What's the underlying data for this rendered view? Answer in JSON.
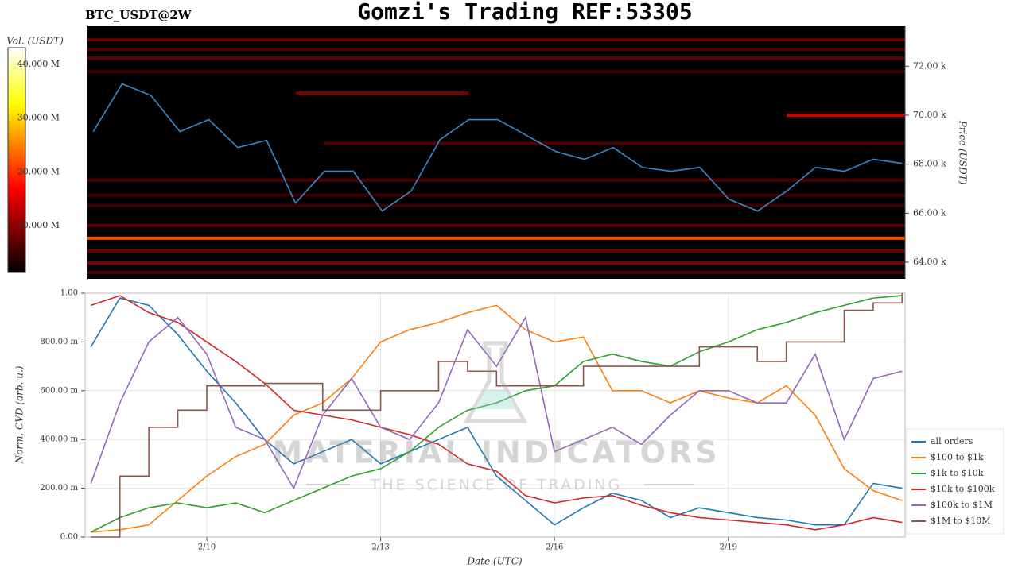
{
  "watermark": {
    "title": "MATERIAL INDICATORS",
    "subtitle": "THE SCIENCE OF TRADING"
  },
  "chart_data": [
    {
      "type": "heatmap",
      "title": "Gomzi's Trading REF:53305",
      "subtitle": "BTC_USDT@2W",
      "y_label": "Price (USDT)",
      "colorbar_label": "Vol. (USDT)",
      "xlim": [
        7.9,
        22.05
      ],
      "ylim": [
        63320,
        73630
      ],
      "yticks": [
        {
          "value": 64000,
          "label": "64.00 k"
        },
        {
          "value": 66000,
          "label": "66.00 k"
        },
        {
          "value": 68000,
          "label": "68.00 k"
        },
        {
          "value": 70000,
          "label": "70.00 k"
        },
        {
          "value": 72000,
          "label": "72.00 k"
        }
      ],
      "clim": [
        1300000,
        43100000
      ],
      "cticks": [
        {
          "value": 10000000,
          "label": "10.000 M"
        },
        {
          "value": 20000000,
          "label": "20.000 M"
        },
        {
          "value": 30000000,
          "label": "30.000 M"
        },
        {
          "value": 40000000,
          "label": "40.000 M"
        }
      ],
      "colormap": "hot",
      "bands": [
        {
          "price": 73070,
          "volume": 8000000,
          "from": 7.9,
          "to": 22.05
        },
        {
          "price": 72680,
          "volume": 6000000,
          "from": 7.9,
          "to": 22.05
        },
        {
          "price": 72330,
          "volume": 7000000,
          "from": 7.9,
          "to": 22.05
        },
        {
          "price": 71770,
          "volume": 5000000,
          "from": 7.9,
          "to": 22.05
        },
        {
          "price": 70900,
          "volume": 9000000,
          "from": 11.5,
          "to": 14.5
        },
        {
          "price": 70000,
          "volume": 14000000,
          "from": 20.0,
          "to": 22.05
        },
        {
          "price": 68850,
          "volume": 6000000,
          "from": 12.0,
          "to": 22.05
        },
        {
          "price": 67350,
          "volume": 6000000,
          "from": 7.9,
          "to": 22.05
        },
        {
          "price": 66735,
          "volume": 5000000,
          "from": 7.9,
          "to": 22.05
        },
        {
          "price": 66310,
          "volume": 5000000,
          "from": 7.9,
          "to": 22.05
        },
        {
          "price": 65500,
          "volume": 7000000,
          "from": 7.9,
          "to": 22.05
        },
        {
          "price": 64980,
          "volume": 22000000,
          "from": 7.9,
          "to": 22.05
        },
        {
          "price": 64460,
          "volume": 8000000,
          "from": 7.9,
          "to": 22.05
        },
        {
          "price": 63970,
          "volume": 9000000,
          "from": 7.9,
          "to": 22.05
        },
        {
          "price": 63580,
          "volume": 6000000,
          "from": 7.9,
          "to": 22.05
        }
      ],
      "x": [
        8,
        8.5,
        9,
        9.5,
        10,
        10.5,
        11,
        11.5,
        12,
        12.5,
        13,
        13.5,
        14,
        14.5,
        15,
        15.5,
        16,
        16.5,
        17,
        17.5,
        18,
        18.5,
        19,
        19.5,
        20,
        20.5,
        21,
        21.5,
        22
      ],
      "series": [
        {
          "color": "#3a87c8",
          "values": [
            69330,
            71280,
            70800,
            69330,
            69820,
            68680,
            68970,
            66410,
            67710,
            67710,
            66090,
            66900,
            69000,
            69820,
            69820,
            69170,
            68520,
            68200,
            68680,
            67870,
            67710,
            67870,
            66570,
            66090,
            66900,
            67870,
            67710,
            68200,
            68030
          ]
        }
      ]
    },
    {
      "type": "line",
      "x_label": "Date (UTC)",
      "y_label": "Norm. CVD (arb. u.)",
      "xlim": [
        7.9,
        22.05
      ],
      "ylim": [
        0,
        1
      ],
      "xticks": [
        {
          "value": 10,
          "label": "2/10"
        },
        {
          "value": 13,
          "label": "2/13"
        },
        {
          "value": 16,
          "label": "2/16"
        },
        {
          "value": 19,
          "label": "2/19"
        }
      ],
      "yticks": [
        {
          "value": 0,
          "label": "0.00"
        },
        {
          "value": 0.2,
          "label": "200.00 m"
        },
        {
          "value": 0.4,
          "label": "400.00 m"
        },
        {
          "value": 0.6,
          "label": "600.00 m"
        },
        {
          "value": 0.8,
          "label": "800.00 m"
        },
        {
          "value": 1,
          "label": "1.00"
        }
      ],
      "grid": true,
      "legend": "outside-right-bottom",
      "x": [
        8,
        8.5,
        9,
        9.5,
        10,
        10.5,
        11,
        11.5,
        12,
        12.5,
        13,
        13.5,
        14,
        14.5,
        15,
        15.5,
        16,
        16.5,
        17,
        17.5,
        18,
        18.5,
        19,
        19.5,
        20,
        20.5,
        21,
        21.5,
        22
      ],
      "series": [
        {
          "name": "all orders",
          "color": "#1f77b4",
          "values": [
            0.78,
            0.98,
            0.95,
            0.83,
            0.68,
            0.55,
            0.4,
            0.3,
            0.35,
            0.4,
            0.3,
            0.35,
            0.4,
            0.45,
            0.25,
            0.15,
            0.05,
            0.12,
            0.18,
            0.15,
            0.08,
            0.12,
            0.1,
            0.08,
            0.07,
            0.05,
            0.05,
            0.22,
            0.2
          ]
        },
        {
          "name": "$100 to $1k",
          "color": "#ff7f0e",
          "values": [
            0.02,
            0.03,
            0.05,
            0.15,
            0.25,
            0.33,
            0.38,
            0.5,
            0.55,
            0.65,
            0.8,
            0.85,
            0.88,
            0.92,
            0.95,
            0.85,
            0.8,
            0.82,
            0.6,
            0.6,
            0.55,
            0.6,
            0.57,
            0.55,
            0.62,
            0.5,
            0.28,
            0.19,
            0.15
          ]
        },
        {
          "name": "$1k to $10k",
          "color": "#2ca02c",
          "values": [
            0.02,
            0.08,
            0.12,
            0.14,
            0.12,
            0.14,
            0.1,
            0.15,
            0.2,
            0.25,
            0.28,
            0.35,
            0.45,
            0.52,
            0.55,
            0.6,
            0.62,
            0.72,
            0.75,
            0.72,
            0.7,
            0.76,
            0.8,
            0.85,
            0.88,
            0.92,
            0.95,
            0.98,
            0.99
          ]
        },
        {
          "name": "$10k to $100k",
          "color": "#d62728",
          "values": [
            0.95,
            0.99,
            0.92,
            0.88,
            0.8,
            0.72,
            0.63,
            0.52,
            0.5,
            0.48,
            0.45,
            0.42,
            0.38,
            0.3,
            0.27,
            0.17,
            0.14,
            0.16,
            0.17,
            0.13,
            0.1,
            0.08,
            0.07,
            0.06,
            0.05,
            0.03,
            0.05,
            0.08,
            0.06
          ]
        },
        {
          "name": "$100k to $1M",
          "color": "#9467bd",
          "values": [
            0.22,
            0.55,
            0.8,
            0.9,
            0.75,
            0.45,
            0.4,
            0.2,
            0.5,
            0.65,
            0.45,
            0.4,
            0.55,
            0.85,
            0.7,
            0.9,
            0.35,
            0.4,
            0.45,
            0.38,
            0.5,
            0.6,
            0.6,
            0.55,
            0.55,
            0.75,
            0.4,
            0.65,
            0.68
          ]
        },
        {
          "name": "$1M to $10M",
          "color": "#8c564b",
          "step": true,
          "values": [
            0.0,
            0.25,
            0.45,
            0.52,
            0.62,
            0.62,
            0.63,
            0.63,
            0.52,
            0.52,
            0.6,
            0.6,
            0.72,
            0.68,
            0.62,
            0.62,
            0.62,
            0.7,
            0.7,
            0.7,
            0.7,
            0.78,
            0.78,
            0.72,
            0.8,
            0.8,
            0.93,
            0.96,
            1.0
          ]
        }
      ]
    }
  ]
}
